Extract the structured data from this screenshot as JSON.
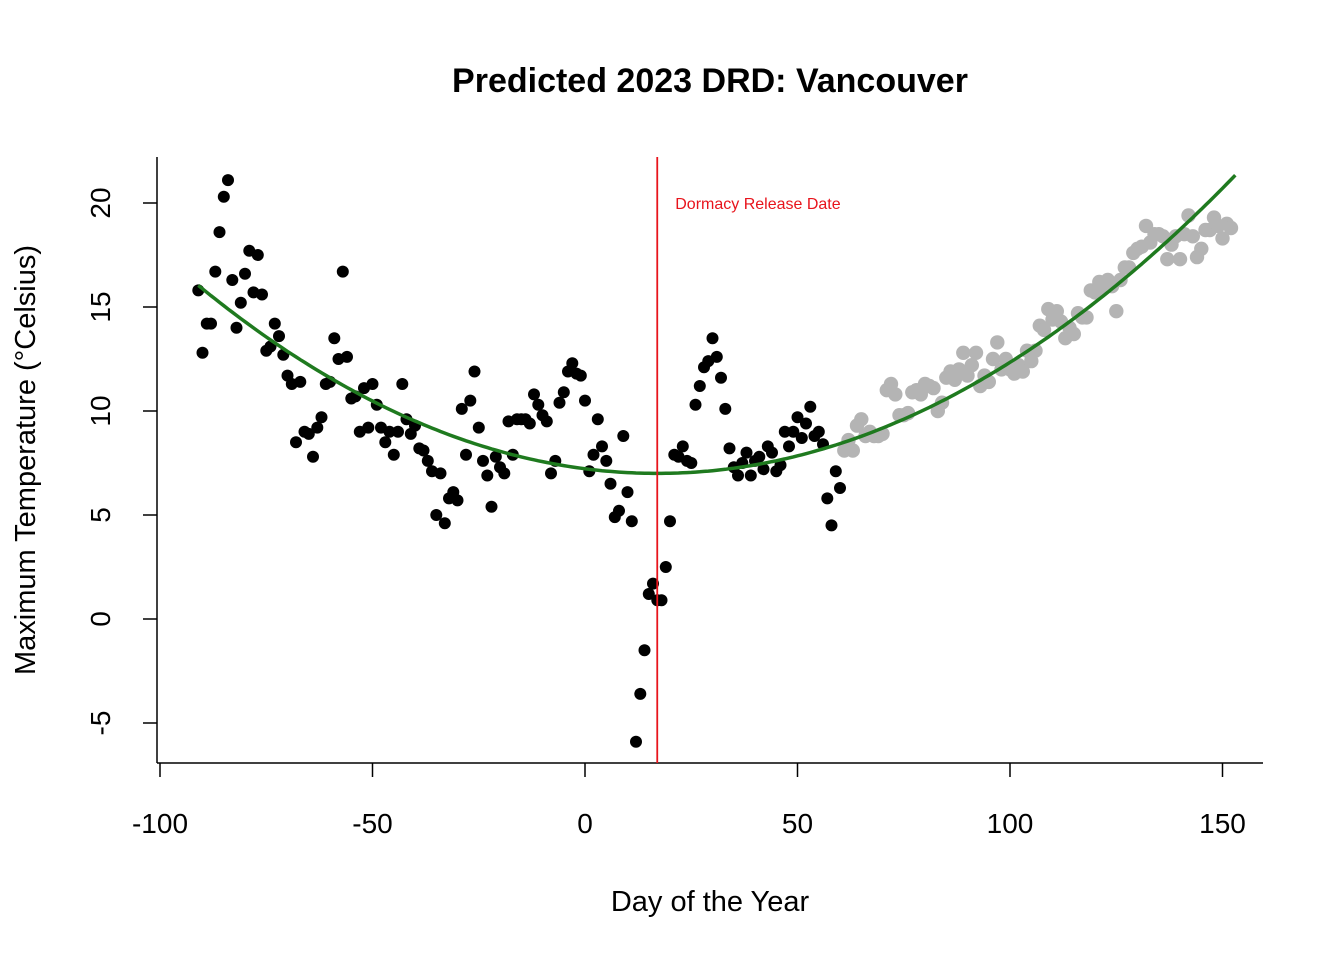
{
  "chart_data": {
    "type": "scatter",
    "title": "Predicted 2023 DRD: Vancouver",
    "xlabel": "Day of the Year",
    "ylabel": "Maximum Temperature (°Celsius)",
    "xlim": [
      -100,
      160
    ],
    "ylim": [
      -7,
      22
    ],
    "xticks": [
      -100,
      -50,
      0,
      50,
      100,
      150
    ],
    "yticks": [
      -5,
      0,
      5,
      10,
      15,
      20
    ],
    "xtick_labels": [
      "-100",
      "-50",
      "0",
      "50",
      "100",
      "150"
    ],
    "ytick_labels": [
      "-5",
      "0",
      "5",
      "10",
      "15",
      "20"
    ],
    "grid": false,
    "legend": "none",
    "colors": {
      "observed": "#000000",
      "predicted": "#b4b4b4",
      "fit": "#1f7a1f",
      "drd_line": "#e8141c"
    },
    "annotation": {
      "text": "Dormacy Release Date",
      "x": 17,
      "y": 20
    },
    "drd_line_x": 17,
    "fit_curve": {
      "x_start": -91,
      "x_end": 153,
      "vertex_x": 17,
      "vertex_y": 7.0,
      "a": 0.000775
    },
    "series": [
      {
        "name": "",
        "color": "#000000",
        "points": [
          [
            -91,
            15.8
          ],
          [
            -90,
            12.8
          ],
          [
            -89,
            14.2
          ],
          [
            -88,
            14.2
          ],
          [
            -87,
            16.7
          ],
          [
            -86,
            18.6
          ],
          [
            -85,
            20.3
          ],
          [
            -84,
            21.1
          ],
          [
            -83,
            16.3
          ],
          [
            -82,
            14.0
          ],
          [
            -81,
            15.2
          ],
          [
            -80,
            16.6
          ],
          [
            -79,
            17.7
          ],
          [
            -78,
            15.7
          ],
          [
            -77,
            17.5
          ],
          [
            -76,
            15.6
          ],
          [
            -75,
            12.9
          ],
          [
            -74,
            13.1
          ],
          [
            -73,
            14.2
          ],
          [
            -72,
            13.6
          ],
          [
            -71,
            12.7
          ],
          [
            -70,
            11.7
          ],
          [
            -69,
            11.3
          ],
          [
            -68,
            8.5
          ],
          [
            -67,
            11.4
          ],
          [
            -66,
            9.0
          ],
          [
            -65,
            8.9
          ],
          [
            -64,
            7.8
          ],
          [
            -63,
            9.2
          ],
          [
            -62,
            9.7
          ],
          [
            -61,
            11.3
          ],
          [
            -60,
            11.4
          ],
          [
            -59,
            13.5
          ],
          [
            -58,
            12.5
          ],
          [
            -57,
            16.7
          ],
          [
            -56,
            12.6
          ],
          [
            -55,
            10.6
          ],
          [
            -54,
            10.7
          ],
          [
            -53,
            9.0
          ],
          [
            -52,
            11.1
          ],
          [
            -51,
            9.2
          ],
          [
            -50,
            11.3
          ],
          [
            -49,
            10.3
          ],
          [
            -48,
            9.2
          ],
          [
            -47,
            8.5
          ],
          [
            -46,
            9.0
          ],
          [
            -45,
            7.9
          ],
          [
            -44,
            9.0
          ],
          [
            -43,
            11.3
          ],
          [
            -42,
            9.6
          ],
          [
            -41,
            8.9
          ],
          [
            -40,
            9.3
          ],
          [
            -39,
            8.2
          ],
          [
            -38,
            8.1
          ],
          [
            -37,
            7.6
          ],
          [
            -36,
            7.1
          ],
          [
            -35,
            5.0
          ],
          [
            -34,
            7.0
          ],
          [
            -33,
            4.6
          ],
          [
            -32,
            5.8
          ],
          [
            -31,
            6.1
          ],
          [
            -30,
            5.7
          ],
          [
            -29,
            10.1
          ],
          [
            -28,
            7.9
          ],
          [
            -27,
            10.5
          ],
          [
            -26,
            11.9
          ],
          [
            -25,
            9.2
          ],
          [
            -24,
            7.6
          ],
          [
            -23,
            6.9
          ],
          [
            -22,
            5.4
          ],
          [
            -21,
            7.8
          ],
          [
            -20,
            7.3
          ],
          [
            -19,
            7.0
          ],
          [
            -18,
            9.5
          ],
          [
            -17,
            7.9
          ],
          [
            -16,
            9.6
          ],
          [
            -15,
            9.6
          ],
          [
            -14,
            9.6
          ],
          [
            -13,
            9.4
          ],
          [
            -12,
            10.8
          ],
          [
            -11,
            10.3
          ],
          [
            -10,
            9.8
          ],
          [
            -9,
            9.5
          ],
          [
            -8,
            7.0
          ],
          [
            -7,
            7.6
          ],
          [
            -6,
            10.4
          ],
          [
            -5,
            10.9
          ],
          [
            -4,
            11.9
          ],
          [
            -3,
            12.3
          ],
          [
            -2,
            11.8
          ],
          [
            -1,
            11.7
          ],
          [
            0,
            10.5
          ],
          [
            1,
            7.1
          ],
          [
            2,
            7.9
          ],
          [
            3,
            9.6
          ],
          [
            4,
            8.3
          ],
          [
            5,
            7.6
          ],
          [
            6,
            6.5
          ],
          [
            7,
            4.9
          ],
          [
            8,
            5.2
          ],
          [
            9,
            8.8
          ],
          [
            10,
            6.1
          ],
          [
            11,
            4.7
          ],
          [
            12,
            -5.9
          ],
          [
            13,
            -3.6
          ],
          [
            14,
            -1.5
          ],
          [
            15,
            1.2
          ],
          [
            16,
            1.7
          ],
          [
            17,
            0.9
          ],
          [
            18,
            0.9
          ],
          [
            19,
            2.5
          ],
          [
            20,
            4.7
          ],
          [
            21,
            7.9
          ],
          [
            22,
            7.8
          ],
          [
            23,
            8.3
          ],
          [
            24,
            7.6
          ],
          [
            25,
            7.5
          ],
          [
            26,
            10.3
          ],
          [
            27,
            11.2
          ],
          [
            28,
            12.1
          ],
          [
            29,
            12.4
          ],
          [
            30,
            13.5
          ],
          [
            31,
            12.6
          ],
          [
            32,
            11.6
          ],
          [
            33,
            10.1
          ],
          [
            34,
            8.2
          ],
          [
            35,
            7.3
          ],
          [
            36,
            6.9
          ],
          [
            37,
            7.5
          ],
          [
            38,
            8.0
          ],
          [
            39,
            6.9
          ],
          [
            40,
            7.6
          ],
          [
            41,
            7.8
          ],
          [
            42,
            7.2
          ],
          [
            43,
            8.3
          ],
          [
            44,
            8.0
          ],
          [
            45,
            7.1
          ],
          [
            46,
            7.4
          ],
          [
            47,
            9.0
          ],
          [
            48,
            8.3
          ],
          [
            49,
            9.0
          ],
          [
            50,
            9.7
          ],
          [
            51,
            8.7
          ],
          [
            52,
            9.4
          ],
          [
            53,
            10.2
          ],
          [
            54,
            8.8
          ],
          [
            55,
            9.0
          ],
          [
            56,
            8.4
          ],
          [
            57,
            5.8
          ],
          [
            58,
            4.5
          ],
          [
            59,
            7.1
          ],
          [
            60,
            6.3
          ]
        ]
      },
      {
        "name": "",
        "color": "#b4b4b4",
        "points": [
          [
            61,
            8.1
          ],
          [
            62,
            8.6
          ],
          [
            63,
            8.1
          ],
          [
            64,
            9.3
          ],
          [
            65,
            9.6
          ],
          [
            66,
            8.8
          ],
          [
            67,
            9.0
          ],
          [
            68,
            8.8
          ],
          [
            69,
            8.8
          ],
          [
            70,
            8.9
          ],
          [
            71,
            11.0
          ],
          [
            72,
            11.3
          ],
          [
            73,
            10.8
          ],
          [
            74,
            9.8
          ],
          [
            75,
            9.8
          ],
          [
            76,
            9.9
          ],
          [
            77,
            10.9
          ],
          [
            78,
            11.0
          ],
          [
            79,
            10.8
          ],
          [
            80,
            11.3
          ],
          [
            81,
            11.2
          ],
          [
            82,
            11.1
          ],
          [
            83,
            10.0
          ],
          [
            84,
            10.4
          ],
          [
            85,
            11.6
          ],
          [
            86,
            11.9
          ],
          [
            87,
            11.5
          ],
          [
            88,
            12.0
          ],
          [
            89,
            12.8
          ],
          [
            90,
            11.7
          ],
          [
            91,
            12.2
          ],
          [
            92,
            12.8
          ],
          [
            93,
            11.2
          ],
          [
            94,
            11.7
          ],
          [
            95,
            11.4
          ],
          [
            96,
            12.5
          ],
          [
            97,
            13.3
          ],
          [
            98,
            12.0
          ],
          [
            99,
            12.5
          ],
          [
            100,
            12.0
          ],
          [
            101,
            11.8
          ],
          [
            102,
            12.2
          ],
          [
            103,
            11.9
          ],
          [
            104,
            12.9
          ],
          [
            105,
            12.4
          ],
          [
            106,
            12.9
          ],
          [
            107,
            14.1
          ],
          [
            108,
            13.9
          ],
          [
            109,
            14.9
          ],
          [
            110,
            14.4
          ],
          [
            111,
            14.8
          ],
          [
            112,
            14.3
          ],
          [
            113,
            13.5
          ],
          [
            114,
            14.0
          ],
          [
            115,
            13.7
          ],
          [
            116,
            14.7
          ],
          [
            117,
            14.5
          ],
          [
            118,
            14.5
          ],
          [
            119,
            15.8
          ],
          [
            120,
            15.7
          ],
          [
            121,
            16.2
          ],
          [
            122,
            15.9
          ],
          [
            123,
            16.3
          ],
          [
            124,
            16.0
          ],
          [
            125,
            14.8
          ],
          [
            126,
            16.3
          ],
          [
            127,
            16.9
          ],
          [
            128,
            16.9
          ],
          [
            129,
            17.6
          ],
          [
            130,
            17.8
          ],
          [
            131,
            17.9
          ],
          [
            132,
            18.9
          ],
          [
            133,
            18.1
          ],
          [
            134,
            18.5
          ],
          [
            135,
            18.5
          ],
          [
            136,
            18.4
          ],
          [
            137,
            17.3
          ],
          [
            138,
            18.0
          ],
          [
            139,
            18.4
          ],
          [
            140,
            17.3
          ],
          [
            141,
            18.5
          ],
          [
            142,
            19.4
          ],
          [
            143,
            18.4
          ],
          [
            144,
            17.4
          ],
          [
            145,
            17.8
          ],
          [
            146,
            18.7
          ],
          [
            147,
            18.7
          ],
          [
            148,
            19.3
          ],
          [
            149,
            18.9
          ],
          [
            150,
            18.3
          ],
          [
            151,
            19.0
          ],
          [
            152,
            18.8
          ]
        ]
      }
    ]
  }
}
